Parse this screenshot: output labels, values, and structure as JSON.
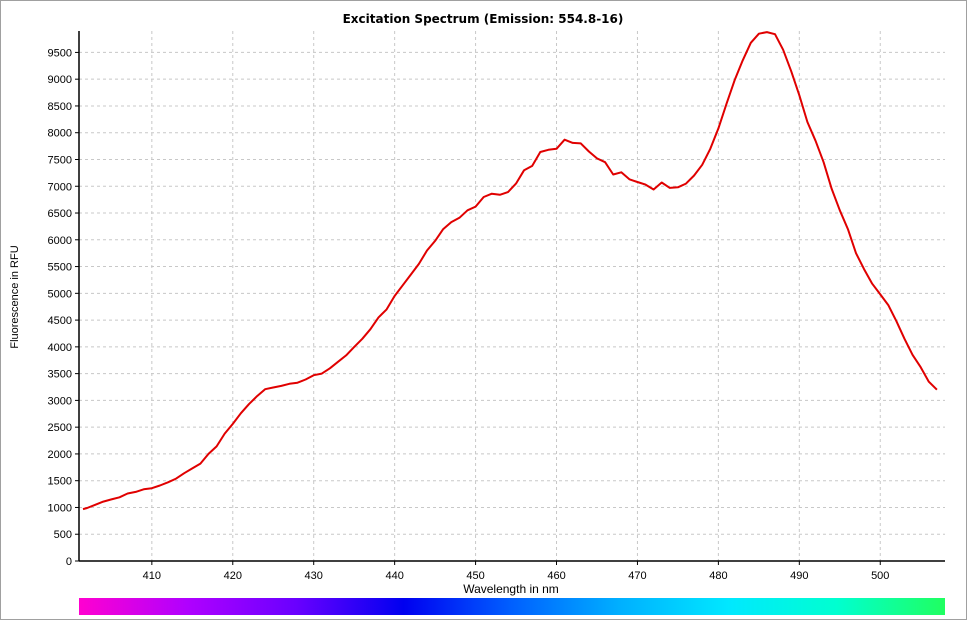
{
  "colors": {
    "series": "#e00000",
    "grid": "#c8c8c8",
    "axis": "#000000"
  },
  "spectrum_bar": {
    "colors": [
      "#ff00d0",
      "#b000ff",
      "#6a00ff",
      "#0000f0",
      "#0060ff",
      "#00b0ff",
      "#00e8ff",
      "#00ffd0",
      "#20ff60"
    ]
  },
  "chart_data": {
    "type": "line",
    "title": "Excitation Spectrum (Emission: 554.8-16)",
    "xlabel": "Wavelength in nm",
    "ylabel": "Fluorescence in RFU",
    "xlim": [
      401,
      508
    ],
    "ylim": [
      0,
      9900
    ],
    "grid": true,
    "xticks": [
      410,
      420,
      430,
      440,
      450,
      460,
      470,
      480,
      490,
      500
    ],
    "yticks": [
      0,
      500,
      1000,
      1500,
      2000,
      2500,
      3000,
      3500,
      4000,
      4500,
      5000,
      5500,
      6000,
      6500,
      7000,
      7500,
      8000,
      8500,
      9000,
      9500
    ],
    "series": [
      {
        "x": [
          401.5,
          402,
          403,
          404,
          405,
          406,
          407,
          408,
          409,
          410,
          411,
          412,
          413,
          414,
          415,
          416,
          417,
          418,
          419,
          420,
          421,
          422,
          423,
          424,
          425,
          426,
          427,
          428,
          429,
          430,
          431,
          432,
          433,
          434,
          435,
          436,
          437,
          438,
          439,
          440,
          441,
          442,
          443,
          444,
          445,
          446,
          447,
          448,
          449,
          450,
          451,
          452,
          453,
          454,
          455,
          456,
          457,
          458,
          459,
          460,
          461,
          462,
          463,
          464,
          465,
          466,
          467,
          468,
          469,
          470,
          471,
          472,
          473,
          474,
          475,
          476,
          477,
          478,
          479,
          480,
          481,
          482,
          483,
          484,
          485,
          486,
          487,
          488,
          489,
          490,
          491,
          492,
          493,
          494,
          495,
          496,
          497,
          498,
          499,
          500,
          501,
          502,
          503,
          504,
          505,
          506,
          507
        ],
        "y": [
          970,
          990,
          1050,
          1110,
          1150,
          1190,
          1260,
          1290,
          1340,
          1360,
          1410,
          1470,
          1540,
          1640,
          1730,
          1820,
          2000,
          2140,
          2380,
          2560,
          2760,
          2930,
          3080,
          3210,
          3240,
          3270,
          3310,
          3330,
          3390,
          3470,
          3500,
          3600,
          3720,
          3840,
          4000,
          4150,
          4330,
          4550,
          4700,
          4950,
          5150,
          5350,
          5550,
          5800,
          5980,
          6200,
          6330,
          6410,
          6550,
          6620,
          6800,
          6860,
          6840,
          6890,
          7050,
          7300,
          7380,
          7640,
          7680,
          7700,
          7870,
          7810,
          7800,
          7650,
          7520,
          7450,
          7220,
          7260,
          7130,
          7080,
          7030,
          6940,
          7070,
          6970,
          6980,
          7050,
          7200,
          7400,
          7700,
          8080,
          8540,
          8980,
          9350,
          9680,
          9850,
          9880,
          9840,
          9550,
          9150,
          8700,
          8200,
          7850,
          7450,
          6950,
          6550,
          6200,
          5750,
          5450,
          5180,
          4980,
          4780,
          4480,
          4150,
          3850,
          3620,
          3350,
          3200
        ]
      }
    ]
  }
}
